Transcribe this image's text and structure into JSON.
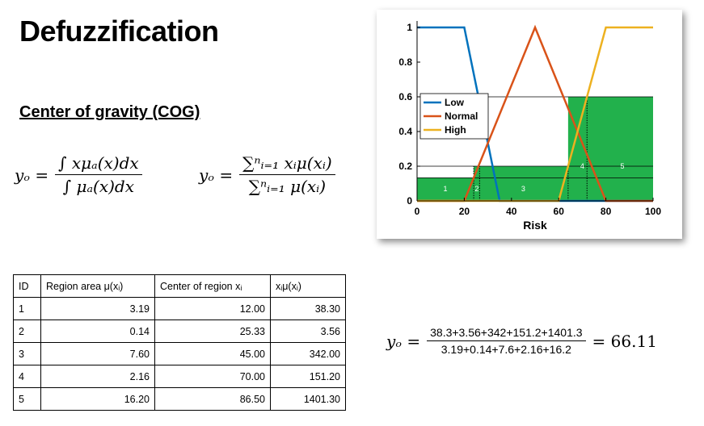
{
  "slide": {
    "title": "Defuzzification",
    "subtitle": "Center of gravity (COG)"
  },
  "formulas": {
    "continuous": {
      "lhs": "yₒ =",
      "numerator": "∫ xμₐ(x)dx",
      "denominator": "∫ μₐ(x)dx"
    },
    "discrete": {
      "lhs": "yₒ =",
      "numerator": "∑ⁿᵢ₌₁ xᵢμ(xᵢ)",
      "denominator": "∑ⁿᵢ₌₁ μ(xᵢ)"
    },
    "calculation": {
      "lhs": "yₒ =",
      "numerator": "38.3+3.56+342+151.2+1401.3",
      "denominator": "3.19+0.14+7.6+2.16+16.2",
      "result": "= 66.11"
    }
  },
  "table": {
    "headers": [
      "ID",
      "Region area μ(xᵢ)",
      "Center of region xᵢ",
      "xᵢμ(xᵢ)"
    ],
    "rows": [
      [
        "1",
        "3.19",
        "12.00",
        "38.30"
      ],
      [
        "2",
        "0.14",
        "25.33",
        "3.56"
      ],
      [
        "3",
        "7.60",
        "45.00",
        "342.00"
      ],
      [
        "4",
        "2.16",
        "70.00",
        "151.20"
      ],
      [
        "5",
        "16.20",
        "86.50",
        "1401.30"
      ]
    ]
  },
  "chart_data": {
    "type": "line",
    "xlabel": "Risk",
    "ylabel": "",
    "xlim": [
      0,
      100
    ],
    "ylim": [
      0,
      1
    ],
    "xticks": [
      "0",
      "20",
      "40",
      "60",
      "80",
      "100"
    ],
    "yticks": [
      "0",
      "0.2",
      "0.4",
      "0.6",
      "0.8",
      "1"
    ],
    "legend_position": "left",
    "series": [
      {
        "name": "Low",
        "color": "#0072BD",
        "x": [
          0,
          20,
          35,
          100
        ],
        "y": [
          1,
          1,
          0,
          0
        ]
      },
      {
        "name": "Normal",
        "color": "#D95319",
        "x": [
          0,
          20,
          50,
          80,
          100
        ],
        "y": [
          0,
          0,
          1,
          0,
          0
        ]
      },
      {
        "name": "High",
        "color": "#EDB120",
        "x": [
          0,
          60,
          80,
          100
        ],
        "y": [
          0,
          0,
          1,
          1
        ]
      }
    ],
    "fill": {
      "color": "#22B14C",
      "x": [
        0,
        24,
        24,
        26.5,
        26.5,
        64,
        64,
        72,
        72,
        100
      ],
      "y": [
        0.133,
        0.133,
        0.2,
        0.2,
        0.2,
        0.2,
        0.6,
        0.6,
        0.6,
        0.6
      ]
    },
    "hlines": [
      0.6,
      0.2,
      0.133
    ],
    "dotted_vlines": [
      {
        "x": 24,
        "y": 0.2
      },
      {
        "x": 26.5,
        "y": 0.2
      },
      {
        "x": 64,
        "y": 0.2
      },
      {
        "x": 72,
        "y": 0.6
      }
    ],
    "region_labels": [
      {
        "text": "1",
        "x": 12,
        "y": 0.07
      },
      {
        "text": "2",
        "x": 25.3,
        "y": 0.07
      },
      {
        "text": "3",
        "x": 45,
        "y": 0.07
      },
      {
        "text": "4",
        "x": 70,
        "y": 0.2
      },
      {
        "text": "5",
        "x": 87,
        "y": 0.2
      }
    ]
  }
}
